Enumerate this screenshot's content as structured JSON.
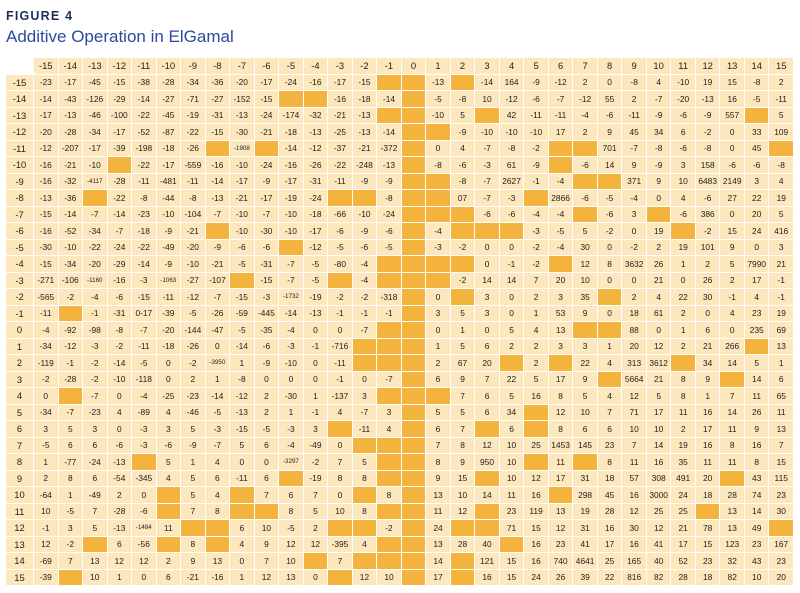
{
  "figure": {
    "label": "FIGURE 4",
    "title": "Additive Operation in ElGamal"
  },
  "table": {
    "col_headers": [
      "-15",
      "-14",
      "-13",
      "-12",
      "-11",
      "-10",
      "-9",
      "-8",
      "-7",
      "-6",
      "-5",
      "-4",
      "-3",
      "-2",
      "-1",
      "0",
      "1",
      "2",
      "3",
      "4",
      "5",
      "6",
      "7",
      "8",
      "9",
      "10",
      "11",
      "12",
      "13",
      "14",
      "15"
    ],
    "row_labels": [
      "-15",
      "-14",
      "-13",
      "-12",
      "-11",
      "-10",
      "-9",
      "-8",
      "-7",
      "-6",
      "-5",
      "-4",
      "-3",
      "-2",
      "-1",
      "0",
      "1",
      "2",
      "3",
      "4",
      "5",
      "6",
      "7",
      "8",
      "9",
      "10",
      "11",
      "12",
      "13",
      "14",
      "15"
    ],
    "legend": {
      "highlight_color": "#f3b33d",
      "cell_color": "#fde7bd"
    },
    "rows": [
      [
        "-23",
        "-17",
        "-45",
        "-15",
        "-38",
        "-28",
        "-34",
        "-36",
        "-20",
        "-17",
        "-24",
        "-16",
        "-17",
        "-15",
        "",
        "",
        "-13",
        "",
        "-14",
        "164",
        "-9",
        "-12",
        "2",
        "0",
        "-8",
        "4",
        "-10",
        "19",
        "15",
        "-8",
        "2"
      ],
      [
        "-14",
        "-43",
        "-126",
        "-29",
        "-14",
        "-27",
        "-71",
        "-27",
        "-152",
        "-15",
        "",
        "",
        "-16",
        "-18",
        "-14",
        "",
        "-5",
        "-8",
        "10",
        "-12",
        "-6",
        "-7",
        "-12",
        "55",
        "2",
        "-7",
        "-20",
        "-13",
        "16",
        "-5",
        "-11"
      ],
      [
        "-17",
        "-13",
        "-46",
        "-100",
        "-22",
        "-45",
        "-19",
        "-31",
        "-13",
        "-24",
        "-174",
        "-32",
        "-21",
        "-13",
        "",
        "",
        "-10",
        "5",
        "",
        "42",
        "-11",
        "-11",
        "-4",
        "-6",
        "-11",
        "-9",
        "-6",
        "-9",
        "557",
        "",
        "5"
      ],
      [
        "-20",
        "-28",
        "-34",
        "-17",
        "-52",
        "-87",
        "-22",
        "-15",
        "-30",
        "-21",
        "-18",
        "-13",
        "-25",
        "-13",
        "-14",
        "",
        "",
        "-9",
        "-10",
        "-10",
        "-10",
        "17",
        "2",
        "9",
        "45",
        "34",
        "6",
        "-2",
        "0",
        "33",
        "109"
      ],
      [
        "-12",
        "-207",
        "-17",
        "-39",
        "-198",
        "-18",
        "-26",
        "",
        "-1908",
        "",
        "-14",
        "-12",
        "-37",
        "-21",
        "-372",
        "",
        "0",
        "4",
        "-7",
        "-8",
        "-2",
        "",
        "",
        "701",
        "-7",
        "-8",
        "-6",
        "-8",
        "0",
        "45",
        ""
      ],
      [
        "-16",
        "-21",
        "-10",
        "",
        "-22",
        "-17",
        "-559",
        "-16",
        "-10",
        "-24",
        "-16",
        "-26",
        "-22",
        "-248",
        "-13",
        "",
        "-8",
        "-6",
        "-3",
        "61",
        "-9",
        "",
        "-6",
        "14",
        "9",
        "-9",
        "3",
        "158",
        "-6",
        "-6",
        "-8"
      ],
      [
        "-16",
        "-32",
        "-4117",
        "-28",
        "-11",
        "-481",
        "-11",
        "-14",
        "-17",
        "-9",
        "-17",
        "-31",
        "-11",
        "-9",
        "-9",
        "",
        "",
        "-8",
        "-7",
        "2627",
        "-1",
        "-4",
        "",
        "",
        "371",
        "9",
        "10",
        "6483",
        "2149",
        "3",
        "4"
      ],
      [
        "-13",
        "-36",
        "",
        "-22",
        "-8",
        "-44",
        "-8",
        "-13",
        "-21",
        "-17",
        "-19",
        "-24",
        "",
        "",
        "-8",
        "",
        "",
        "07",
        "-7",
        "-3",
        "",
        "2866",
        "-6",
        "-5",
        "-4",
        "0",
        "4",
        "-6",
        "27",
        "22",
        "19"
      ],
      [
        "-15",
        "-14",
        "-7",
        "-14",
        "-23",
        "-10",
        "-104",
        "-7",
        "-10",
        "-7",
        "-10",
        "-18",
        "-66",
        "-10",
        "-24",
        "",
        "",
        "",
        "-6",
        "-6",
        "-4",
        "-4",
        "",
        "-6",
        "3",
        "",
        "-6",
        "386",
        "0",
        "20",
        "5"
      ],
      [
        "-16",
        "-52",
        "-34",
        "-7",
        "-18",
        "-9",
        "-21",
        "",
        "-10",
        "-30",
        "-10",
        "-17",
        "-6",
        "-9",
        "-6",
        "",
        "-4",
        "",
        "",
        "",
        "-3",
        "-5",
        "5",
        "-2",
        "0",
        "19",
        "",
        "-2",
        "15",
        "24",
        "416"
      ],
      [
        "-30",
        "-10",
        "-22",
        "-24",
        "-22",
        "-49",
        "-20",
        "-9",
        "-6",
        "-6",
        "",
        "-12",
        "-5",
        "-6",
        "-5",
        "",
        "-3",
        "-2",
        "0",
        "0",
        "-2",
        "-4",
        "30",
        "0",
        "-2",
        "2",
        "19",
        "101",
        "9",
        "0",
        "3"
      ],
      [
        "-15",
        "-34",
        "-20",
        "-29",
        "-14",
        "-9",
        "-10",
        "-21",
        "-5",
        "-31",
        "-7",
        "-5",
        "-80",
        "-4",
        "",
        "",
        "",
        "",
        "0",
        "-1",
        "-2",
        "",
        "12",
        "8",
        "3632",
        "26",
        "1",
        "2",
        "5",
        "7990",
        "21"
      ],
      [
        "-271",
        "-106",
        "-1160",
        "-16",
        "-3",
        "-1063",
        "-27",
        "-107",
        "",
        "-15",
        "-7",
        "-5",
        "",
        "-4",
        "",
        "",
        "",
        "-2",
        "14",
        "14",
        "7",
        "20",
        "10",
        "0",
        "0",
        "21",
        "0",
        "26",
        "2",
        "17",
        "-1"
      ],
      [
        "-565",
        "-2",
        "-4",
        "-6",
        "-15",
        "-11",
        "-12",
        "-7",
        "-15",
        "-3",
        "-1732",
        "-19",
        "-2",
        "-2",
        "-318",
        "",
        "0",
        "",
        "3",
        "0",
        "2",
        "3",
        "35",
        "",
        "2",
        "4",
        "22",
        "30",
        "-1",
        "4",
        "-1"
      ],
      [
        "-11",
        "",
        "-1",
        "-31",
        "0-17",
        "-39",
        "-5",
        "-26",
        "-59",
        "-445",
        "-14",
        "-13",
        "-1",
        "-1",
        "-1",
        "",
        "3",
        "5",
        "3",
        "0",
        "1",
        "53",
        "9",
        "0",
        "18",
        "61",
        "2",
        "0",
        "4",
        "23",
        "19"
      ],
      [
        "-4",
        "-92",
        "-98",
        "-8",
        "-7",
        "-20",
        "-144",
        "-47",
        "-5",
        "-35",
        "-4",
        "0",
        "0",
        "-7",
        "",
        "",
        "0",
        "1",
        "0",
        "5",
        "4",
        "13",
        "",
        "",
        "88",
        "0",
        "1",
        "6",
        "0",
        "235",
        "69"
      ],
      [
        "-34",
        "-12",
        "-3",
        "-2",
        "-11",
        "-18",
        "-26",
        "0",
        "-14",
        "-6",
        "-3",
        "-1",
        "-716",
        "",
        "",
        "",
        "1",
        "5",
        "6",
        "2",
        "2",
        "3",
        "3",
        "1",
        "20",
        "12",
        "2",
        "21",
        "266",
        "",
        "13"
      ],
      [
        "-119",
        "-1",
        "-2",
        "-14",
        "-5",
        "0",
        "-2",
        "-3950",
        "1",
        "-9",
        "-10",
        "0",
        "-11",
        "",
        "",
        "",
        "2",
        "67",
        "20",
        "",
        "2",
        "",
        "22",
        "4",
        "313",
        "3612",
        "",
        "34",
        "14",
        "5",
        "1"
      ],
      [
        "-2",
        "-28",
        "-2",
        "-10",
        "-118",
        "0",
        "2",
        "1",
        "-8",
        "0",
        "0",
        "0",
        "-1",
        "0",
        "-7",
        "",
        "6",
        "9",
        "7",
        "22",
        "5",
        "17",
        "9",
        "",
        "5664",
        "21",
        "8",
        "9",
        "",
        "14",
        "6"
      ],
      [
        "0",
        "",
        "-7",
        "0",
        "-4",
        "-25",
        "-23",
        "-14",
        "-12",
        "2",
        "-30",
        "1",
        "-137",
        "3",
        "",
        "",
        "",
        "7",
        "6",
        "5",
        "16",
        "8",
        "5",
        "4",
        "12",
        "5",
        "8",
        "1",
        "7",
        "11",
        "65"
      ],
      [
        "-34",
        "-7",
        "-23",
        "4",
        "-89",
        "4",
        "-46",
        "-5",
        "-13",
        "2",
        "1",
        "-1",
        "4",
        "-7",
        "3",
        "",
        "5",
        "5",
        "6",
        "34",
        "",
        "12",
        "10",
        "7",
        "71",
        "17",
        "11",
        "16",
        "14",
        "26",
        "11"
      ],
      [
        "3",
        "5",
        "3",
        "0",
        "-3",
        "3",
        "5",
        "-3",
        "-15",
        "-5",
        "-3",
        "3",
        "",
        "-11",
        "4",
        "",
        "6",
        "7",
        "",
        "6",
        "",
        "8",
        "6",
        "6",
        "10",
        "10",
        "2",
        "17",
        "11",
        "9",
        "13"
      ],
      [
        "-5",
        "6",
        "6",
        "-6",
        "-3",
        "-6",
        "-9",
        "-7",
        "5",
        "6",
        "-4",
        "-49",
        "0",
        "",
        "",
        "",
        "7",
        "8",
        "12",
        "10",
        "25",
        "1453",
        "145",
        "23",
        "7",
        "14",
        "19",
        "16",
        "8",
        "16",
        "7"
      ],
      [
        "1",
        "-77",
        "-24",
        "-13",
        "",
        "5",
        "1",
        "4",
        "0",
        "0",
        "-3297",
        "-2",
        "7",
        "5",
        "",
        "",
        "8",
        "9",
        "950",
        "10",
        "",
        "11",
        "",
        "8",
        "11",
        "16",
        "35",
        "11",
        "11",
        "8",
        "15"
      ],
      [
        "2",
        "8",
        "6",
        "-54",
        "-345",
        "4",
        "5",
        "6",
        "-11",
        "6",
        "",
        "-19",
        "8",
        "8",
        "",
        "",
        "9",
        "15",
        "",
        "10",
        "12",
        "17",
        "31",
        "18",
        "57",
        "308",
        "491",
        "20",
        "",
        "43",
        "115"
      ],
      [
        "-64",
        "1",
        "-49",
        "2",
        "0",
        "",
        "5",
        "4",
        "",
        "7",
        "6",
        "7",
        "0",
        "",
        "8",
        "",
        "13",
        "10",
        "14",
        "11",
        "16",
        "",
        "298",
        "45",
        "16",
        "3000",
        "24",
        "18",
        "28",
        "74",
        "23"
      ],
      [
        "10",
        "-5",
        "7",
        "-28",
        "-6",
        "",
        "7",
        "8",
        "",
        "",
        "8",
        "5",
        "10",
        "8",
        "",
        "",
        "11",
        "12",
        "",
        "23",
        "119",
        "13",
        "19",
        "28",
        "12",
        "25",
        "25",
        "",
        "13",
        "14",
        "30"
      ],
      [
        "-1",
        "3",
        "5",
        "-13",
        "-1484",
        "11",
        "",
        "",
        "6",
        "10",
        "-5",
        "2",
        "",
        "",
        "-2",
        "",
        "24",
        "",
        "",
        "71",
        "15",
        "12",
        "31",
        "16",
        "30",
        "12",
        "21",
        "78",
        "13",
        "49",
        ""
      ],
      [
        "12",
        "-2",
        "",
        "6",
        "-56",
        "",
        "8",
        "",
        "4",
        "9",
        "12",
        "12",
        "-395",
        "4",
        "",
        "",
        "13",
        "28",
        "40",
        "",
        "16",
        "23",
        "41",
        "17",
        "16",
        "41",
        "17",
        "15",
        "123",
        "23",
        "167"
      ],
      [
        "-69",
        "7",
        "13",
        "12",
        "12",
        "2",
        "9",
        "13",
        "0",
        "7",
        "10",
        "",
        "7",
        "",
        "",
        "",
        "14",
        "",
        "121",
        "15",
        "16",
        "740",
        "4641",
        "25",
        "165",
        "40",
        "52",
        "23",
        "32",
        "43",
        "23"
      ],
      [
        "-39",
        "",
        "10",
        "1",
        "0",
        "6",
        "-21",
        "-16",
        "1",
        "12",
        "13",
        "0",
        "",
        "12",
        "10",
        "",
        "17",
        "",
        "16",
        "15",
        "24",
        "26",
        "39",
        "22",
        "816",
        "82",
        "28",
        "18",
        "82",
        "10",
        "20"
      ]
    ]
  }
}
